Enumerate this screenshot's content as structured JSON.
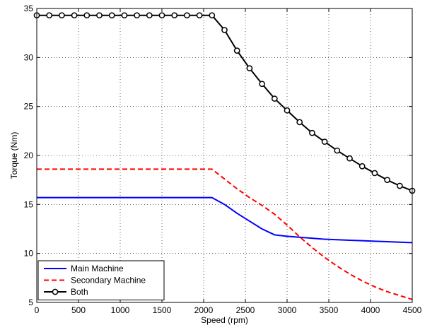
{
  "chart_data": {
    "type": "line",
    "title": "",
    "xlabel": "Speed (rpm)",
    "ylabel": "Torque (Nm)",
    "xlim": [
      0,
      4500
    ],
    "ylim": [
      5,
      35
    ],
    "xticks": [
      0,
      500,
      1000,
      1500,
      2000,
      2500,
      3000,
      3500,
      4000,
      4500
    ],
    "yticks": [
      5,
      10,
      15,
      20,
      25,
      30,
      35
    ],
    "grid": true,
    "legend_position": "bottom-left",
    "series": [
      {
        "name": "Main Machine",
        "color": "#0000ff",
        "style": "solid",
        "markers": false,
        "x": [
          0,
          2100,
          2250,
          2400,
          2550,
          2700,
          2850,
          3000,
          3150,
          3300,
          3450,
          3600,
          3750,
          3900,
          4050,
          4200,
          4350,
          4500
        ],
        "y": [
          15.7,
          15.7,
          15.0,
          14.1,
          13.3,
          12.5,
          11.9,
          11.75,
          11.65,
          11.55,
          11.45,
          11.4,
          11.35,
          11.3,
          11.25,
          11.2,
          11.15,
          11.1
        ]
      },
      {
        "name": "Secondary Machine",
        "color": "#ff0000",
        "style": "dashed",
        "markers": false,
        "x": [
          0,
          2100,
          2250,
          2400,
          2550,
          2700,
          2850,
          3000,
          3150,
          3300,
          3450,
          3600,
          3750,
          3900,
          4050,
          4200,
          4350,
          4500
        ],
        "y": [
          18.6,
          18.6,
          17.6,
          16.6,
          15.7,
          14.9,
          14.0,
          12.9,
          11.7,
          10.6,
          9.6,
          8.7,
          7.9,
          7.2,
          6.6,
          6.1,
          5.7,
          5.3
        ]
      },
      {
        "name": "Both",
        "color": "#000000",
        "style": "solid",
        "markers": true,
        "marker": "circle",
        "x": [
          0,
          150,
          300,
          450,
          600,
          750,
          900,
          1050,
          1200,
          1350,
          1500,
          1650,
          1800,
          1950,
          2100,
          2250,
          2400,
          2550,
          2700,
          2850,
          3000,
          3150,
          3300,
          3450,
          3600,
          3750,
          3900,
          4050,
          4200,
          4350,
          4500
        ],
        "y": [
          34.3,
          34.3,
          34.3,
          34.3,
          34.3,
          34.3,
          34.3,
          34.3,
          34.3,
          34.3,
          34.3,
          34.3,
          34.3,
          34.3,
          34.3,
          32.8,
          30.7,
          28.9,
          27.3,
          25.8,
          24.6,
          23.4,
          22.3,
          21.4,
          20.5,
          19.7,
          18.9,
          18.2,
          17.5,
          16.9,
          16.4
        ]
      }
    ]
  }
}
